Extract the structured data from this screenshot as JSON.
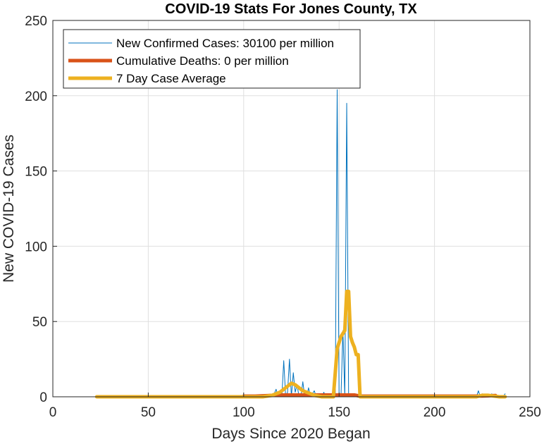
{
  "chart_data": {
    "type": "line",
    "title": "COVID-19 Stats For Jones County, TX",
    "xlabel": "Days Since 2020 Began",
    "ylabel": "New COVID-19 Cases",
    "xlim": [
      0,
      250
    ],
    "ylim": [
      0,
      250
    ],
    "xticks": [
      0,
      50,
      100,
      150,
      200,
      250
    ],
    "yticks": [
      0,
      50,
      100,
      150,
      200,
      250
    ],
    "grid": true,
    "legend_position": "top-left",
    "series": [
      {
        "name": "New Confirmed Cases: 30100 per million",
        "color": "#0072BD",
        "width": "thin",
        "x": [
          23,
          100,
          115,
          116,
          117,
          118,
          119,
          120,
          121,
          122,
          123,
          124,
          125,
          126,
          127,
          128,
          129,
          130,
          131,
          132,
          133,
          134,
          135,
          136,
          137,
          138,
          139,
          140,
          141,
          142,
          143,
          144,
          145,
          146,
          147,
          148,
          149,
          150,
          151,
          152,
          153,
          154,
          155,
          156,
          157,
          158,
          159,
          160,
          161,
          162,
          163,
          200,
          220,
          222,
          223,
          224,
          225,
          226,
          227,
          228,
          229,
          230,
          231,
          232,
          233,
          234,
          235,
          236,
          237
        ],
        "y": [
          0,
          0,
          0,
          2,
          5,
          0,
          1,
          0,
          24,
          0,
          3,
          25,
          0,
          16,
          3,
          8,
          0,
          0,
          10,
          0,
          0,
          6,
          0,
          2,
          4,
          0,
          1,
          0,
          0,
          3,
          0,
          1,
          0,
          0,
          0,
          0,
          204,
          0,
          0,
          44,
          0,
          195,
          0,
          0,
          0,
          0,
          0,
          0,
          0,
          0,
          0,
          0,
          0,
          0,
          4,
          0,
          2,
          0,
          1,
          0,
          0,
          2,
          0,
          0,
          0,
          0,
          0,
          0,
          2
        ]
      },
      {
        "name": "Cumulative Deaths: 0 per million",
        "color": "#D95319",
        "width": "thick",
        "x": [
          100,
          106,
          120,
          140,
          146,
          152,
          158,
          161,
          222,
          232
        ],
        "y": [
          0.4,
          0.4,
          1.2,
          1.2,
          1.2,
          1.2,
          1.2,
          0.4,
          0.4,
          0.8
        ]
      },
      {
        "name": "7 Day Case Average",
        "color": "#EDB120",
        "width": "thick",
        "x": [
          23,
          100,
          110,
          115,
          117,
          119,
          121,
          123,
          125,
          127,
          129,
          131,
          133,
          135,
          137,
          139,
          141,
          143,
          145,
          147,
          149,
          151,
          153,
          154,
          155,
          156,
          157,
          158,
          159,
          160,
          161,
          162,
          163,
          200,
          222,
          225,
          228,
          231,
          234,
          237
        ],
        "y": [
          0,
          0,
          0,
          1,
          2,
          3,
          5,
          7,
          9,
          8,
          6,
          4,
          3,
          2,
          1,
          0.5,
          0,
          0,
          0,
          0,
          32,
          40,
          44,
          70,
          70,
          40,
          36,
          33,
          28,
          28,
          0,
          0,
          0,
          0,
          0,
          1,
          1,
          0.5,
          0,
          0
        ]
      }
    ]
  }
}
